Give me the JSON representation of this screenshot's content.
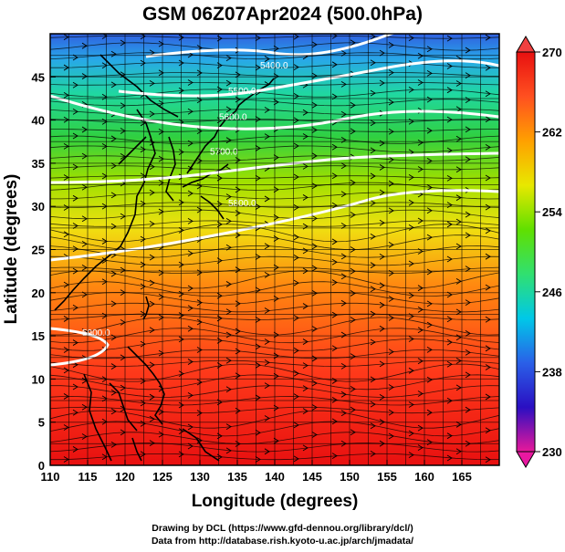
{
  "title": "GSM 06Z07Apr2024 (500.0hPa)",
  "map": {
    "xlabel": "Longitude (degrees)",
    "ylabel": "Latitude  (degrees)",
    "lon_range": [
      110,
      170
    ],
    "lat_range": [
      0,
      50
    ],
    "x_ticks": [
      "110",
      "115",
      "120",
      "125",
      "130",
      "135",
      "140",
      "145",
      "150",
      "155",
      "160",
      "165"
    ],
    "x_tick_values": [
      110,
      115,
      120,
      125,
      130,
      135,
      140,
      145,
      150,
      155,
      160,
      165
    ],
    "y_ticks": [
      "0",
      "5",
      "10",
      "15",
      "20",
      "25",
      "30",
      "35",
      "40",
      "45"
    ],
    "y_tick_values": [
      0,
      5,
      10,
      15,
      20,
      25,
      30,
      35,
      40,
      45
    ],
    "grid": true,
    "field": "temperature (K)",
    "overlay": "wind streamlines and geopotential height contours (white)"
  },
  "colorbar": {
    "min": 230,
    "max": 270,
    "tick_labels": [
      "270",
      "262",
      "254",
      "246",
      "238",
      "230"
    ],
    "tick_values": [
      270,
      262,
      254,
      246,
      238,
      230
    ],
    "colors": [
      "#e8189a",
      "#2a0fc2",
      "#2a60e8",
      "#00c8e8",
      "#30e070",
      "#60e000",
      "#e8e800",
      "#ffa000",
      "#ff5020",
      "#e81010"
    ]
  },
  "contours": [
    {
      "label": "5400.0",
      "lat_hint": 46
    },
    {
      "label": "5500.0",
      "lat_hint": 43
    },
    {
      "label": "5600.0",
      "lat_hint": 40
    },
    {
      "label": "5700.0",
      "lat_hint": 36
    },
    {
      "label": "5800.0",
      "lat_hint": 30
    },
    {
      "label": "5900.0",
      "lat_hint": 15
    }
  ],
  "credits": {
    "line1": "Drawing by DCL (https://www.gfd-dennou.org/library/dcl/)",
    "line2": "Data from http://database.rish.kyoto-u.ac.jp/arch/jmadata/"
  }
}
